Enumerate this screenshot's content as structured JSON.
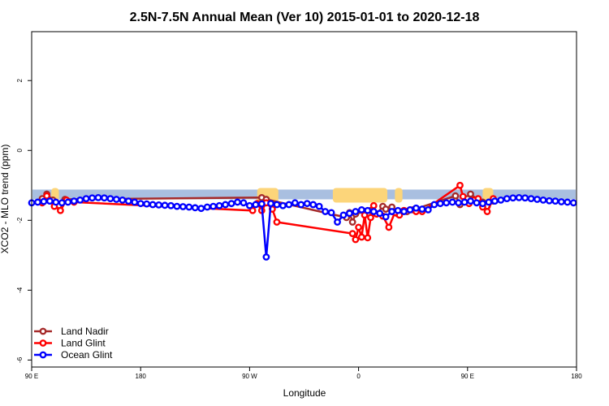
{
  "chart_data": {
    "type": "line",
    "title": "2.5N-7.5N Annual Mean (Ver 10)   2015-01-01 to 2020-12-18",
    "xlabel": "Longitude",
    "ylabel": "XCO2 - MLO trend (ppm)",
    "xlim": [
      -180,
      180
    ],
    "ylim": [
      -6.2,
      3.4
    ],
    "x_ticks": [
      {
        "value": -180,
        "label": "90 E"
      },
      {
        "value": -108,
        "label": "180"
      },
      {
        "value": -36,
        "label": "90 W"
      },
      {
        "value": 36,
        "label": "0"
      },
      {
        "value": 108,
        "label": "90 E"
      },
      {
        "value": 180,
        "label": "180"
      }
    ],
    "y_ticks": [
      {
        "value": 2,
        "label": "2"
      },
      {
        "value": 0,
        "label": "0"
      },
      {
        "value": -2,
        "label": "-2"
      },
      {
        "value": -4,
        "label": "-4"
      },
      {
        "value": -6,
        "label": "-6"
      }
    ],
    "legend_position": "bottom-left",
    "background": {
      "ocean_color": "#a9bfe0",
      "land_color": "#fcd57a",
      "band_ylim": [
        -1.4,
        -1.12
      ]
    },
    "series": [
      {
        "name": "Land Nadir",
        "color": "#a52a2a",
        "x": [
          -173,
          -170,
          -166,
          -162,
          -158,
          -28,
          -25,
          28,
          30,
          32,
          34,
          40,
          44,
          48,
          52,
          54,
          58,
          62,
          66,
          68,
          72,
          100,
          103,
          108,
          110,
          115,
          118,
          121,
          125
        ],
        "y": [
          -1.38,
          -1.25,
          -1.42,
          -1.58,
          -1.4,
          -1.35,
          -1.4,
          -1.92,
          -1.78,
          -2.05,
          -1.82,
          -1.75,
          -1.72,
          -1.82,
          -1.6,
          -1.68,
          -1.62,
          -1.82,
          -1.72,
          -1.75,
          -1.7,
          -1.3,
          -1.55,
          -1.38,
          -1.25,
          -1.42,
          -1.48,
          -1.6,
          -1.45
        ]
      },
      {
        "name": "Land Glint",
        "color": "#ff0000",
        "x": [
          -173,
          -170,
          -165,
          -161,
          -157,
          -152,
          -34,
          -31,
          -28,
          -25,
          -21,
          -18,
          32,
          34,
          36,
          38,
          40,
          42,
          44,
          46,
          48,
          52,
          56,
          60,
          63,
          66,
          70,
          74,
          78,
          103,
          105,
          109,
          112,
          115,
          118,
          121,
          125
        ],
        "y": [
          -1.5,
          -1.3,
          -1.6,
          -1.72,
          -1.42,
          -1.48,
          -1.72,
          -1.52,
          -1.72,
          -1.5,
          -1.68,
          -2.05,
          -2.38,
          -2.55,
          -2.2,
          -2.48,
          -1.85,
          -2.5,
          -1.92,
          -1.58,
          -1.82,
          -1.88,
          -2.2,
          -1.78,
          -1.85,
          -1.72,
          -1.7,
          -1.75,
          -1.75,
          -1.0,
          -1.32,
          -1.52,
          -1.42,
          -1.38,
          -1.62,
          -1.75,
          -1.38
        ]
      },
      {
        "name": "Ocean Glint",
        "color": "#0000ff",
        "x": [
          -180,
          -176,
          -172,
          -168,
          -164,
          -160,
          -156,
          -152,
          -148,
          -144,
          -140,
          -136,
          -132,
          -128,
          -124,
          -120,
          -116,
          -112,
          -108,
          -104,
          -100,
          -96,
          -92,
          -88,
          -84,
          -80,
          -76,
          -72,
          -68,
          -64,
          -60,
          -56,
          -52,
          -48,
          -44,
          -40,
          -36,
          -32,
          -28,
          -25,
          -22,
          -18,
          -14,
          -10,
          -6,
          -2,
          2,
          6,
          10,
          14,
          18,
          22,
          26,
          30,
          34,
          38,
          42,
          46,
          50,
          54,
          58,
          62,
          66,
          70,
          74,
          78,
          82,
          86,
          90,
          94,
          98,
          102,
          106,
          110,
          114,
          118,
          122,
          126,
          130,
          134,
          138,
          142,
          146,
          150,
          154,
          158,
          162,
          166,
          170,
          174,
          178
        ],
        "y": [
          -1.5,
          -1.48,
          -1.46,
          -1.45,
          -1.48,
          -1.5,
          -1.48,
          -1.45,
          -1.42,
          -1.38,
          -1.36,
          -1.35,
          -1.36,
          -1.38,
          -1.4,
          -1.42,
          -1.45,
          -1.48,
          -1.52,
          -1.53,
          -1.55,
          -1.56,
          -1.57,
          -1.58,
          -1.6,
          -1.61,
          -1.62,
          -1.64,
          -1.66,
          -1.62,
          -1.6,
          -1.58,
          -1.55,
          -1.52,
          -1.48,
          -1.5,
          -1.58,
          -1.55,
          -1.53,
          -3.05,
          -1.52,
          -1.55,
          -1.58,
          -1.55,
          -1.5,
          -1.55,
          -1.52,
          -1.55,
          -1.6,
          -1.75,
          -1.78,
          -2.05,
          -1.85,
          -1.8,
          -1.75,
          -1.7,
          -1.72,
          -1.75,
          -1.8,
          -1.9,
          -1.75,
          -1.72,
          -1.75,
          -1.7,
          -1.65,
          -1.68,
          -1.7,
          -1.55,
          -1.52,
          -1.5,
          -1.48,
          -1.5,
          -1.48,
          -1.45,
          -1.5,
          -1.52,
          -1.48,
          -1.45,
          -1.42,
          -1.38,
          -1.36,
          -1.35,
          -1.36,
          -1.38,
          -1.4,
          -1.42,
          -1.44,
          -1.45,
          -1.47,
          -1.48,
          -1.5
        ]
      }
    ]
  }
}
